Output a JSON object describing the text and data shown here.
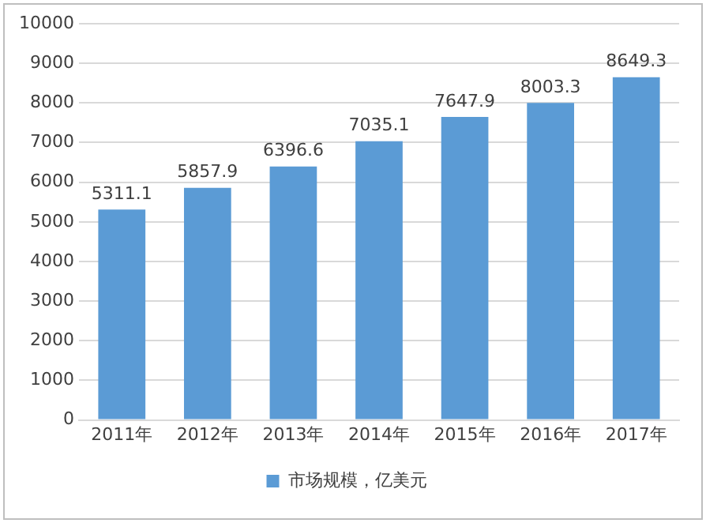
{
  "chart_data": {
    "type": "bar",
    "categories": [
      "2011年",
      "2012年",
      "2013年",
      "2014年",
      "2015年",
      "2016年",
      "2017年"
    ],
    "series": [
      {
        "name": "市场规模，亿美元",
        "color": "#5b9bd5",
        "values": [
          5311.1,
          5857.9,
          6396.6,
          7035.1,
          7647.9,
          8003.3,
          8649.3
        ]
      }
    ],
    "ylim": [
      0,
      10000
    ],
    "yticks": [
      0,
      1000,
      2000,
      3000,
      4000,
      5000,
      6000,
      7000,
      8000,
      9000,
      10000
    ],
    "grid": "y",
    "legend": "bottom",
    "data_labels": true
  }
}
